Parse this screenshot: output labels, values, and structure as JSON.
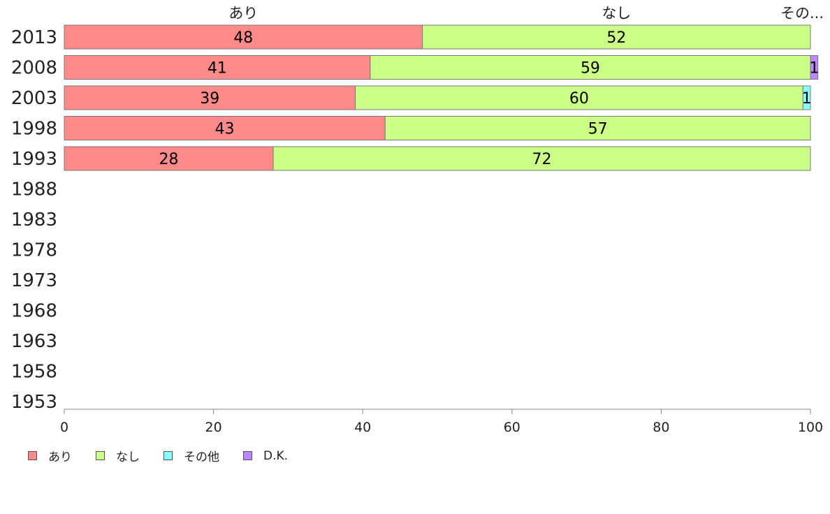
{
  "chart_data": {
    "type": "bar",
    "orientation": "horizontal",
    "stacked": true,
    "categories": [
      "2013",
      "2008",
      "2003",
      "1998",
      "1993",
      "1988",
      "1983",
      "1978",
      "1973",
      "1968",
      "1963",
      "1958",
      "1953"
    ],
    "series": [
      {
        "name": "あり",
        "color": "#ff8a8a",
        "values": [
          48,
          41,
          39,
          43,
          28,
          null,
          null,
          null,
          null,
          null,
          null,
          null,
          null
        ]
      },
      {
        "name": "なし",
        "color": "#ccff88",
        "values": [
          52,
          59,
          60,
          57,
          72,
          null,
          null,
          null,
          null,
          null,
          null,
          null,
          null
        ]
      },
      {
        "name": "その他",
        "color": "#88ffff",
        "values": [
          0,
          0,
          1,
          0,
          0,
          null,
          null,
          null,
          null,
          null,
          null,
          null,
          null
        ]
      },
      {
        "name": "D.K.",
        "color": "#bb88ff",
        "values": [
          0,
          1,
          0,
          0,
          0,
          null,
          null,
          null,
          null,
          null,
          null,
          null,
          null
        ]
      }
    ],
    "top_labels": [
      "あり",
      "なし",
      "その..."
    ],
    "xlim": [
      0,
      100
    ],
    "xticks": [
      0,
      20,
      40,
      60,
      80,
      100
    ],
    "grid": false,
    "legend_position": "bottom-left"
  }
}
